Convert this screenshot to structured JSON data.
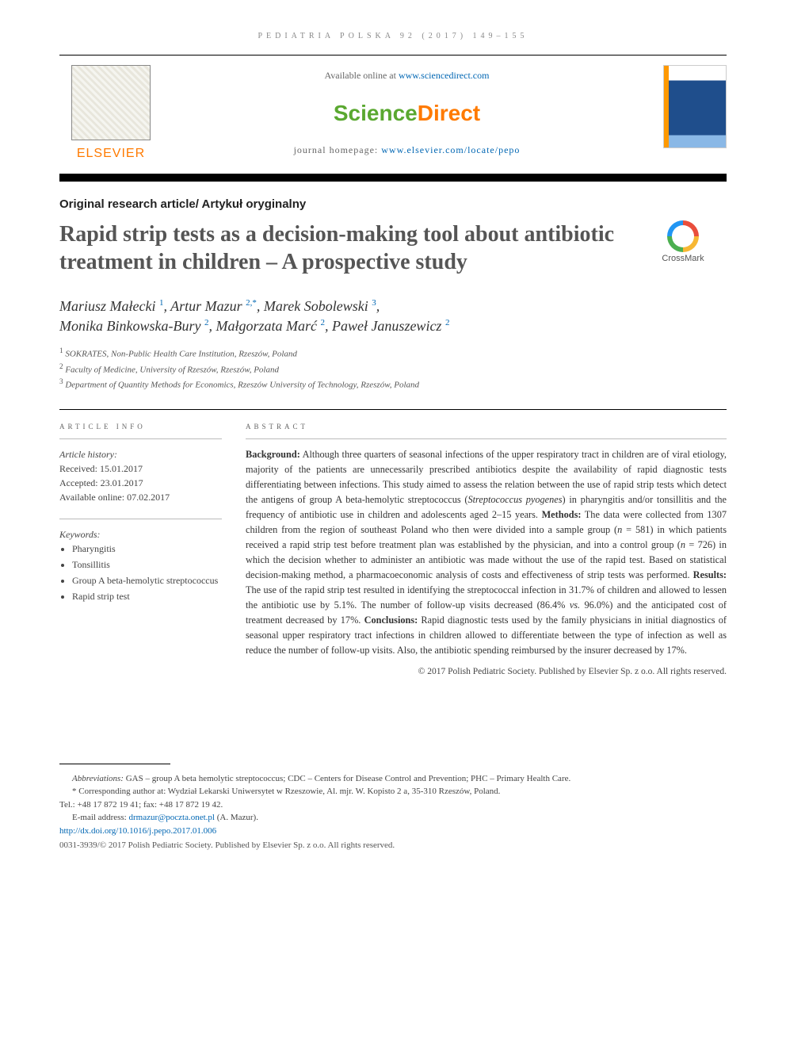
{
  "running_head": "PEDIATRIA POLSKA 92 (2017) 149–155",
  "masthead": {
    "available_prefix": "Available online at ",
    "available_link": "www.sciencedirect.com",
    "sd_logo_left": "Science",
    "sd_logo_right": "Direct",
    "journal_home_prefix": "journal homepage: ",
    "journal_home_link": "www.elsevier.com/locate/pepo",
    "elsevier_word": "ELSEVIER",
    "crossmark_label": "CrossMark"
  },
  "article_type": "Original research article/ Artykuł oryginalny",
  "title": "Rapid strip tests as a decision-making tool about antibiotic treatment in children – A prospective study",
  "authors_html": "Mariusz Małecki <sup><a>1</a></sup>, Artur Mazur <sup><a>2,</a>*</sup>, Marek Sobolewski <sup><a>3</a></sup>,<br>Monika Binkowska-Bury <sup><a>2</a></sup>, Małgorzata Marć <sup><a>2</a></sup>, Paweł Januszewicz <sup><a>2</a></sup>",
  "affiliations": [
    {
      "n": "1",
      "text": "SOKRATES, Non-Public Health Care Institution, Rzeszów, Poland"
    },
    {
      "n": "2",
      "text": "Faculty of Medicine, University of Rzeszów, Rzeszów, Poland"
    },
    {
      "n": "3",
      "text": "Department of Quantity Methods for Economics, Rzeszów University of Technology, Rzeszów, Poland"
    }
  ],
  "info": {
    "heading": "ARTICLE INFO",
    "history_label": "Article history:",
    "received": "Received: 15.01.2017",
    "accepted": "Accepted: 23.01.2017",
    "online": "Available online: 07.02.2017",
    "keywords_label": "Keywords:",
    "keywords": [
      "Pharyngitis",
      "Tonsillitis",
      "Group A beta-hemolytic streptococcus",
      "Rapid strip test"
    ]
  },
  "abstract": {
    "heading": "ABSTRACT",
    "body": "<b>Background:</b> Although three quarters of seasonal infections of the upper respiratory tract in children are of viral etiology, majority of the patients are unnecessarily prescribed antibiotics despite the availability of rapid diagnostic tests differentiating between infections. This study aimed to assess the relation between the use of rapid strip tests which detect the antigens of group A beta-hemolytic streptococcus (<i>Streptococcus pyogenes</i>) in pharyngitis and/or tonsillitis and the frequency of antibiotic use in children and adolescents aged 2–15 years. <b>Methods:</b> The data were collected from 1307 children from the region of southeast Poland who then were divided into a sample group (<i>n</i> = 581) in which patients received a rapid strip test before treatment plan was established by the physician, and into a control group (<i>n</i> = 726) in which the decision whether to administer an antibiotic was made without the use of the rapid test. Based on statistical decision-making method, a pharmacoeconomic analysis of costs and effectiveness of strip tests was performed. <b>Results:</b> The use of the rapid strip test resulted in identifying the streptococcal infection in 31.7% of children and allowed to lessen the antibiotic use by 5.1%. The number of follow-up visits decreased (86.4% <i>vs.</i> 96.0%) and the anticipated cost of treatment decreased by 17%. <b>Conclusions:</b> Rapid diagnostic tests used by the family physicians in initial diagnostics of seasonal upper respiratory tract infections in children allowed to differentiate between the type of infection as well as reduce the number of follow-up visits. Also, the antibiotic spending reimbursed by the insurer decreased by 17%.",
    "copyright": "© 2017 Polish Pediatric Society. Published by Elsevier Sp. z o.o. All rights reserved."
  },
  "footnotes": {
    "abbrev_label": "Abbreviations:",
    "abbrev_text": " GAS – group A beta hemolytic streptococcus; CDC – Centers for Disease Control and Prevention; PHC – Primary Health Care.",
    "corr_label": "* Corresponding author at",
    "corr_text": ": Wydział Lekarski Uniwersytet w Rzeszowie, Al. mjr. W. Kopisto 2 a, 35-310 Rzeszów, Poland.",
    "tel": "Tel.: +48 17 872 19 41; fax: +48 17 872 19 42.",
    "email_label": "E-mail address: ",
    "email": "drmazur@poczta.onet.pl",
    "email_suffix": " (A. Mazur).",
    "doi": "http://dx.doi.org/10.1016/j.pepo.2017.01.006",
    "issn": "0031-3939/© 2017 Polish Pediatric Society. Published by Elsevier Sp. z o.o. All rights reserved."
  },
  "colors": {
    "link": "#0066b3",
    "orange": "#ff7a00",
    "green": "#5aa830"
  }
}
